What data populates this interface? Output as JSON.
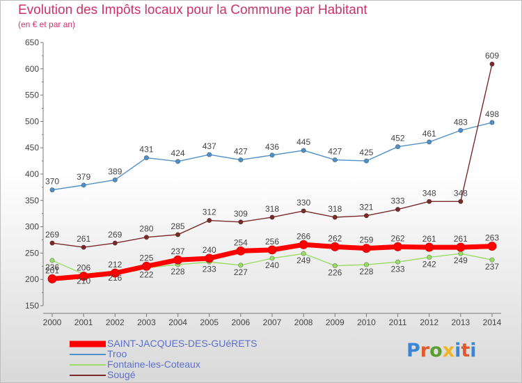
{
  "header": {
    "title": "Evolution des Impôts locaux pour la Commune par Habitant",
    "subtitle": "(en € et par an)"
  },
  "logo": {
    "text": "Proxiti",
    "colors": [
      "#3a86d6",
      "#e05a2b",
      "#5a9e2f",
      "#f0b323",
      "#3a86d6",
      "#e05a2b",
      "#3a86d6"
    ]
  },
  "chart_data": {
    "type": "line",
    "x": [
      2000,
      2001,
      2002,
      2003,
      2004,
      2005,
      2006,
      2007,
      2008,
      2009,
      2010,
      2011,
      2012,
      2013,
      2014
    ],
    "ylim": [
      150,
      650
    ],
    "yticks": [
      150,
      200,
      250,
      300,
      350,
      400,
      450,
      500,
      550,
      600,
      650
    ],
    "grid": false,
    "legend_position": "bottom",
    "series": [
      {
        "name": "SAINT-JACQUES-DES-GUéRETS",
        "color": "#ff0000",
        "values": [
          201,
          206,
          212,
          225,
          237,
          240,
          254,
          256,
          266,
          262,
          259,
          262,
          261,
          261,
          263
        ],
        "labels": [
          "201",
          "206",
          "212",
          "225",
          "237",
          "240",
          "254",
          "256",
          "266",
          "262",
          "259",
          "262",
          "261",
          "261",
          "263"
        ],
        "highlight": true
      },
      {
        "name": "Troo",
        "color": "#4f90c8",
        "values": [
          370,
          379,
          389,
          431,
          424,
          437,
          427,
          436,
          445,
          427,
          425,
          452,
          461,
          483,
          498
        ],
        "labels": [
          "370",
          "379",
          "389",
          "431",
          "424",
          "437",
          "427",
          "436",
          "445",
          "427",
          "425",
          "452",
          "461",
          "483",
          "498"
        ]
      },
      {
        "name": "Fontaine-les-Coteaux",
        "color": "#99dd66",
        "values": [
          236,
          210,
          216,
          222,
          228,
          233,
          227,
          240,
          249,
          226,
          228,
          233,
          242,
          249,
          237
        ],
        "labels": [
          "236",
          "210",
          "216",
          "222",
          "228",
          "233",
          "227",
          "240",
          "249",
          "226",
          "228",
          "233",
          "242",
          "249",
          "237"
        ]
      },
      {
        "name": "Sougé",
        "color": "#7a2a2a",
        "values": [
          269,
          261,
          269,
          280,
          285,
          312,
          309,
          318,
          330,
          318,
          321,
          333,
          348,
          348,
          609
        ],
        "labels": [
          "269",
          "261",
          "269",
          "280",
          "285",
          "312",
          "309",
          "318",
          "330",
          "318",
          "321",
          "333",
          "348",
          "348",
          "609"
        ]
      }
    ]
  }
}
